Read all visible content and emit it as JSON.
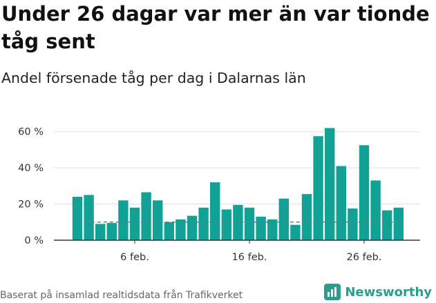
{
  "title": "Under 26 dagar var mer än var tionde tåg sent",
  "subtitle": "Andel försenade tåg per dag i Dalarnas län",
  "footer": {
    "source": "Baserat på insamlad realtidsdata från Trafikverket",
    "brand": "Newsworthy",
    "brand_icon": "bar-chart-logo-icon"
  },
  "colors": {
    "bar": "#11a195",
    "reference_line": "#777777",
    "grid": "#dddddd",
    "brand": "#2a9d8f"
  },
  "chart_data": {
    "type": "bar",
    "y_tick_labels": [
      "0 %",
      "20 %",
      "40 %",
      "60 %"
    ],
    "x_tick_labels": [
      "6 feb.",
      "16 feb.",
      "26 feb."
    ],
    "ylim": [
      0,
      66
    ],
    "grid": true,
    "reference_line_value": 10,
    "x": [
      "2024-02-01",
      "2024-02-02",
      "2024-02-03",
      "2024-02-04",
      "2024-02-05",
      "2024-02-06",
      "2024-02-07",
      "2024-02-08",
      "2024-02-09",
      "2024-02-10",
      "2024-02-11",
      "2024-02-12",
      "2024-02-13",
      "2024-02-14",
      "2024-02-15",
      "2024-02-16",
      "2024-02-17",
      "2024-02-18",
      "2024-02-19",
      "2024-02-20",
      "2024-02-21",
      "2024-02-22",
      "2024-02-23",
      "2024-02-24",
      "2024-02-25",
      "2024-02-26",
      "2024-02-27",
      "2024-02-28",
      "2024-02-29"
    ],
    "values": [
      24,
      25,
      9,
      9.5,
      22,
      18,
      26.5,
      22,
      10,
      11.5,
      13.5,
      18,
      32,
      17,
      19.5,
      18,
      13,
      11.5,
      23,
      8.5,
      25.5,
      57.5,
      62,
      41,
      17.5,
      52.5,
      33,
      16.5,
      18
    ]
  }
}
